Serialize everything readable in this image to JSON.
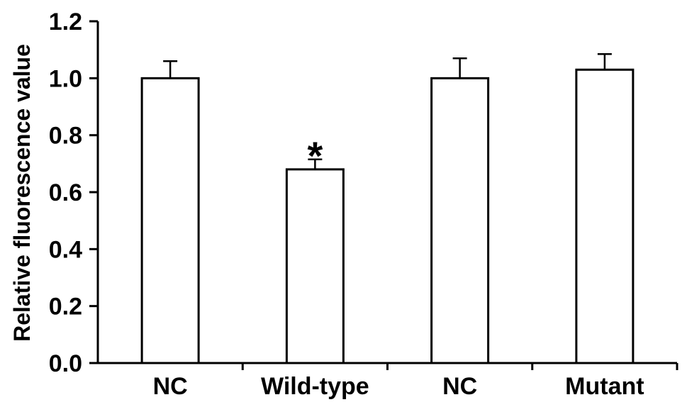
{
  "chart_data": {
    "type": "bar",
    "title": "",
    "xlabel": "",
    "ylabel": "Relative fluorescence value",
    "ylim": [
      0,
      1.2
    ],
    "yticks": [
      "0.0",
      "0.2",
      "0.4",
      "0.6",
      "0.8",
      "1.0",
      "1.2"
    ],
    "categories": [
      "NC",
      "Wild-type",
      "NC",
      "Mutant"
    ],
    "values": [
      1.0,
      0.68,
      1.0,
      1.03
    ],
    "errors": [
      0.06,
      0.035,
      0.07,
      0.055
    ],
    "annotations": [
      "",
      "*",
      "",
      ""
    ],
    "bar_fill": "#ffffff",
    "bar_stroke": "#000000",
    "grid": false,
    "legend": "none"
  }
}
